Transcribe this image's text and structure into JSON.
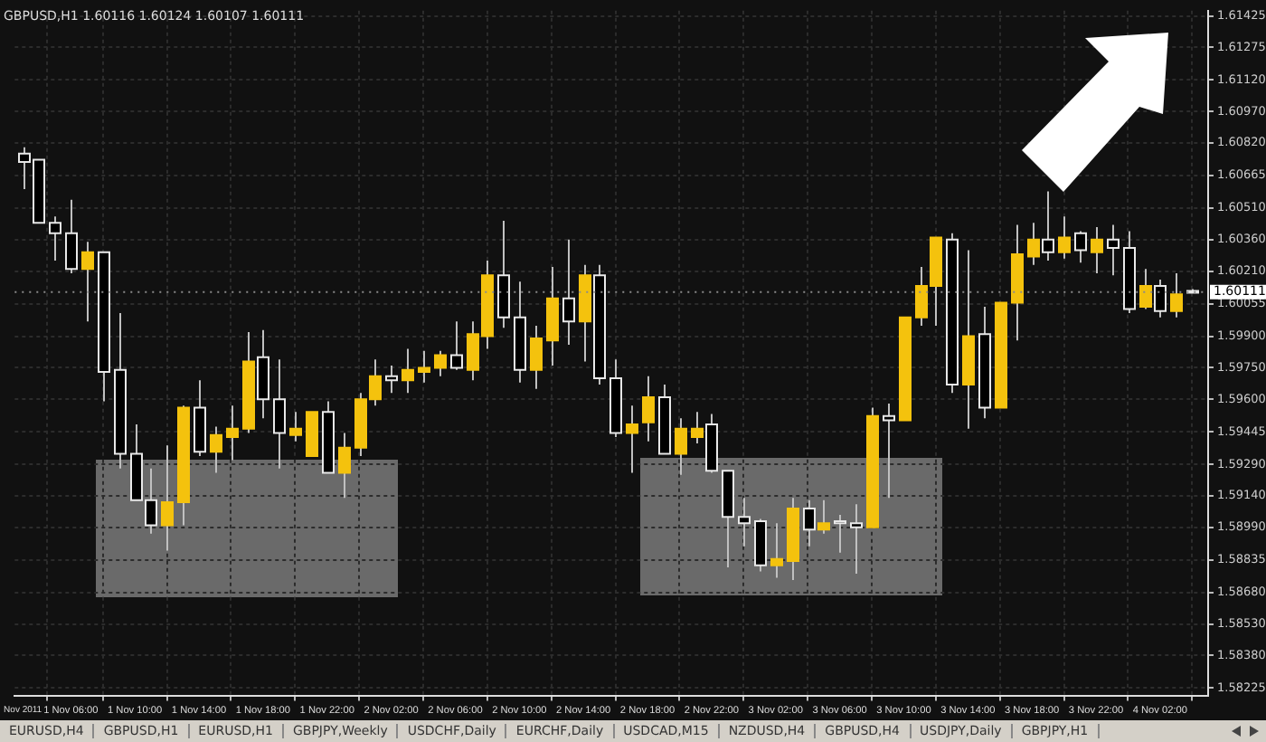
{
  "chart_data": {
    "type": "candlestick",
    "title": "GBPUSD,H1 1.60116 1.60124 1.60107 1.60111",
    "categories": [
      "Nov 2011",
      null,
      null,
      "1 Nov 06:00",
      null,
      null,
      null,
      "1 Nov 10:00",
      null,
      null,
      null,
      "1 Nov 14:00",
      null,
      null,
      null,
      "1 Nov 18:00",
      null,
      null,
      null,
      "1 Nov 22:00",
      null,
      null,
      null,
      "2 Nov 02:00",
      null,
      null,
      null,
      "2 Nov 06:00",
      null,
      null,
      null,
      "2 Nov 10:00",
      null,
      null,
      null,
      "2 Nov 14:00",
      null,
      null,
      null,
      "2 Nov 18:00",
      null,
      null,
      null,
      "2 Nov 22:00",
      null,
      null,
      null,
      "3 Nov 02:00",
      null,
      null,
      null,
      "3 Nov 06:00",
      null,
      null,
      null,
      "3 Nov 10:00",
      null,
      null,
      null,
      "3 Nov 14:00",
      null,
      null,
      null,
      "3 Nov 18:00",
      null,
      null,
      null,
      "3 Nov 22:00",
      null,
      null,
      null,
      "4 Nov 02:00",
      null,
      null
    ],
    "ohlc": [
      [
        1.6077,
        1.608,
        1.606,
        1.6073
      ],
      [
        1.6074,
        1.6074,
        1.6044,
        1.6044
      ],
      [
        1.6044,
        1.6047,
        1.6026,
        1.6039
      ],
      [
        1.6039,
        1.6055,
        1.602,
        1.6022
      ],
      [
        1.6022,
        1.6035,
        1.5997,
        1.603
      ],
      [
        1.603,
        1.603,
        1.5959,
        1.5973
      ],
      [
        1.5974,
        1.6001,
        1.5927,
        1.5934
      ],
      [
        1.5934,
        1.5948,
        1.5912,
        1.5912
      ],
      [
        1.5912,
        1.5927,
        1.5896,
        1.59
      ],
      [
        1.59,
        1.5938,
        1.5888,
        1.5911
      ],
      [
        1.5911,
        1.5957,
        1.59,
        1.5956
      ],
      [
        1.5956,
        1.5969,
        1.5933,
        1.5935
      ],
      [
        1.5935,
        1.5947,
        1.5925,
        1.5943
      ],
      [
        1.5942,
        1.5957,
        1.5931,
        1.5946
      ],
      [
        1.5946,
        1.5992,
        1.5944,
        1.5978
      ],
      [
        1.598,
        1.5993,
        1.5951,
        1.596
      ],
      [
        1.596,
        1.5979,
        1.5927,
        1.5944
      ],
      [
        1.5943,
        1.5954,
        1.594,
        1.5946
      ],
      [
        1.5933,
        1.5954,
        1.5933,
        1.5954
      ],
      [
        1.5954,
        1.5959,
        1.5925,
        1.5925
      ],
      [
        1.5925,
        1.5944,
        1.5913,
        1.5937
      ],
      [
        1.5937,
        1.5963,
        1.5933,
        1.596
      ],
      [
        1.596,
        1.5979,
        1.5957,
        1.5971
      ],
      [
        1.5971,
        1.5976,
        1.5963,
        1.5969
      ],
      [
        1.5969,
        1.5984,
        1.5963,
        1.5974
      ],
      [
        1.5973,
        1.5983,
        1.5968,
        1.5975
      ],
      [
        1.5975,
        1.5983,
        1.5971,
        1.5981
      ],
      [
        1.5981,
        1.5997,
        1.5974,
        1.5975
      ],
      [
        1.5974,
        1.5997,
        1.5969,
        1.5991
      ],
      [
        1.599,
        1.6026,
        1.5984,
        1.6019
      ],
      [
        1.6019,
        1.6045,
        1.5994,
        1.5999
      ],
      [
        1.5999,
        1.6016,
        1.5968,
        1.5974
      ],
      [
        1.5974,
        1.5995,
        1.5965,
        1.5989
      ],
      [
        1.5988,
        1.6023,
        1.5976,
        1.6008
      ],
      [
        1.6008,
        1.6036,
        1.5986,
        1.5997
      ],
      [
        1.5997,
        1.6024,
        1.5978,
        1.6019
      ],
      [
        1.6019,
        1.6024,
        1.5967,
        1.597
      ],
      [
        1.597,
        1.5979,
        1.5942,
        1.5944
      ],
      [
        1.5944,
        1.5957,
        1.5925,
        1.5948
      ],
      [
        1.5949,
        1.5971,
        1.594,
        1.5961
      ],
      [
        1.5961,
        1.5967,
        1.5934,
        1.5934
      ],
      [
        1.5934,
        1.5951,
        1.5924,
        1.5946
      ],
      [
        1.5942,
        1.5954,
        1.5939,
        1.5946
      ],
      [
        1.5948,
        1.5953,
        1.5925,
        1.5926
      ],
      [
        1.5926,
        1.5926,
        1.588,
        1.5904
      ],
      [
        1.5904,
        1.5913,
        1.589,
        1.5901
      ],
      [
        1.5902,
        1.5903,
        1.5878,
        1.5881
      ],
      [
        1.5881,
        1.5901,
        1.5875,
        1.5884
      ],
      [
        1.5883,
        1.5913,
        1.5874,
        1.5908
      ],
      [
        1.5908,
        1.5912,
        1.589,
        1.5898
      ],
      [
        1.5898,
        1.5912,
        1.5896,
        1.5901
      ],
      [
        1.5902,
        1.5905,
        1.5887,
        1.5901
      ],
      [
        1.5901,
        1.591,
        1.5877,
        1.5899
      ],
      [
        1.5899,
        1.5956,
        1.5899,
        1.5952
      ],
      [
        1.5952,
        1.5958,
        1.5913,
        1.595
      ],
      [
        1.595,
        1.5999,
        1.595,
        1.5999
      ],
      [
        1.5999,
        1.6023,
        1.5995,
        1.6014
      ],
      [
        1.6014,
        1.6037,
        1.5995,
        1.6037
      ],
      [
        1.6036,
        1.6039,
        1.5963,
        1.5967
      ],
      [
        1.5967,
        1.6031,
        1.5946,
        1.599
      ],
      [
        1.5991,
        1.6004,
        1.5951,
        1.5956
      ],
      [
        1.5956,
        1.6006,
        1.5956,
        1.6006
      ],
      [
        1.6006,
        1.6043,
        1.5988,
        1.6029
      ],
      [
        1.6028,
        1.6044,
        1.6024,
        1.6036
      ],
      [
        1.6036,
        1.6059,
        1.6026,
        1.603
      ],
      [
        1.603,
        1.6047,
        1.6027,
        1.6037
      ],
      [
        1.6039,
        1.604,
        1.6025,
        1.6031
      ],
      [
        1.603,
        1.6042,
        1.602,
        1.6036
      ],
      [
        1.6036,
        1.6043,
        1.6019,
        1.6032
      ],
      [
        1.6032,
        1.604,
        1.6001,
        1.6003
      ],
      [
        1.6004,
        1.6022,
        1.6003,
        1.6014
      ],
      [
        1.6014,
        1.6017,
        1.5999,
        1.6002
      ],
      [
        1.6002,
        1.602,
        1.5999,
        1.601
      ],
      [
        1.60116,
        1.60124,
        1.60107,
        1.60111
      ]
    ],
    "ylim": [
      1.5819,
      1.6145
    ],
    "yticks": [
      1.61425,
      1.61275,
      {
        "value": 1.6112,
        "label": "1.61120"
      },
      {
        "value": 1.6097,
        "label": "1.60970"
      },
      {
        "value": 1.6082,
        "label": "1.60820"
      },
      1.60665,
      {
        "value": 1.6051,
        "label": "1.60510"
      },
      {
        "value": 1.6036,
        "label": "1.60360"
      },
      {
        "value": 1.6021,
        "label": "1.60210"
      },
      1.60055,
      {
        "value": 1.599,
        "label": "1.59900"
      },
      {
        "value": 1.5975,
        "label": "1.59750"
      },
      {
        "value": 1.596,
        "label": "1.59600"
      },
      1.59445,
      {
        "value": 1.5929,
        "label": "1.59290"
      },
      {
        "value": 1.5914,
        "label": "1.59140"
      },
      {
        "value": 1.5899,
        "label": "1.58990"
      },
      1.58835,
      {
        "value": 1.5868,
        "label": "1.58680"
      },
      {
        "value": 1.5853,
        "label": "1.58530"
      },
      {
        "value": 1.5838,
        "label": "1.58380"
      },
      1.58225
    ],
    "grid": true,
    "ref_lines": [
      {
        "axis": "y",
        "value": 1.60111,
        "label": "1.60111"
      }
    ],
    "annotations": [
      "EURUSD,H4",
      "GBPUSD,H1",
      "EURUSD,H1",
      "GBPJPY,Weekly",
      "USDCHF,Daily",
      "EURCHF,Daily",
      "USDCAD,M15",
      "NZDUSD,H4",
      "GBPUSD,H4",
      "USDJPY,Daily",
      "GBPJPY,H1"
    ]
  }
}
